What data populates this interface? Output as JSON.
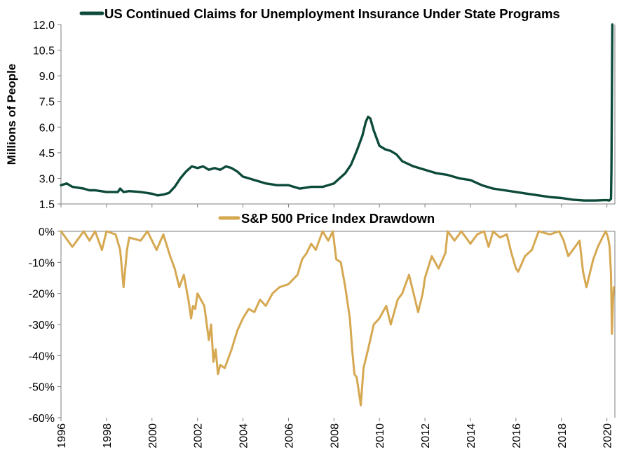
{
  "colors": {
    "claims": "#0c4a3a",
    "drawdown": "#d6a852",
    "axis": "#7f7f7f",
    "text": "#000000"
  },
  "chart_data": [
    {
      "type": "line",
      "legend": "US Continued Claims for Unemployment Insurance Under State Programs",
      "ylabel": "Millions of People",
      "ylim": [
        1.5,
        12.0
      ],
      "yticks": [
        "12.0",
        "10.5",
        "9.0",
        "7.5",
        "6.0",
        "4.5",
        "3.0",
        "1.5"
      ],
      "yticks_values": [
        12.0,
        10.5,
        9.0,
        7.5,
        6.0,
        4.5,
        3.0,
        1.5
      ],
      "xlim": [
        1996,
        2020.35
      ],
      "series": [
        {
          "x": [
            1996.0,
            1996.25,
            1996.5,
            1996.75,
            1997.0,
            1997.25,
            1997.5,
            1997.75,
            1998.0,
            1998.25,
            1998.5,
            1998.6,
            1998.75,
            1999.0,
            1999.5,
            2000.0,
            2000.25,
            2000.5,
            2000.75,
            2001.0,
            2001.25,
            2001.5,
            2001.75,
            2002.0,
            2002.25,
            2002.5,
            2002.75,
            2003.0,
            2003.25,
            2003.5,
            2003.75,
            2004.0,
            2004.25,
            2004.5,
            2004.75,
            2005.0,
            2005.5,
            2005.75,
            2006.0,
            2006.5,
            2007.0,
            2007.5,
            2007.75,
            2008.0,
            2008.25,
            2008.5,
            2008.75,
            2009.0,
            2009.25,
            2009.4,
            2009.5,
            2009.6,
            2009.75,
            2010.0,
            2010.25,
            2010.5,
            2010.75,
            2011.0,
            2011.5,
            2012.0,
            2012.5,
            2013.0,
            2013.5,
            2014.0,
            2014.5,
            2015.0,
            2015.5,
            2016.0,
            2016.5,
            2017.0,
            2017.5,
            2018.0,
            2018.5,
            2019.0,
            2019.5,
            2019.9,
            2020.0,
            2020.1,
            2020.18,
            2020.2,
            2020.24
          ],
          "y": [
            2.6,
            2.7,
            2.5,
            2.45,
            2.4,
            2.3,
            2.3,
            2.25,
            2.2,
            2.2,
            2.2,
            2.4,
            2.2,
            2.25,
            2.2,
            2.1,
            2.0,
            2.05,
            2.15,
            2.5,
            3.0,
            3.4,
            3.7,
            3.6,
            3.7,
            3.5,
            3.6,
            3.5,
            3.7,
            3.6,
            3.4,
            3.1,
            3.0,
            2.9,
            2.8,
            2.7,
            2.6,
            2.6,
            2.6,
            2.4,
            2.5,
            2.5,
            2.6,
            2.7,
            3.0,
            3.3,
            3.8,
            4.6,
            5.5,
            6.3,
            6.6,
            6.5,
            5.8,
            4.9,
            4.7,
            4.6,
            4.4,
            4.0,
            3.7,
            3.5,
            3.3,
            3.2,
            3.0,
            2.9,
            2.6,
            2.4,
            2.3,
            2.2,
            2.1,
            2.0,
            1.9,
            1.85,
            1.75,
            1.7,
            1.7,
            1.72,
            1.72,
            1.7,
            1.8,
            3.5,
            12.0
          ]
        }
      ]
    },
    {
      "type": "area",
      "legend": "S&P 500 Price Index Drawdown",
      "ylim": [
        -60,
        0
      ],
      "yticks": [
        "0%",
        "-10%",
        "-20%",
        "-30%",
        "-40%",
        "-50%",
        "-60%"
      ],
      "yticks_values": [
        0,
        -10,
        -20,
        -30,
        -40,
        -50,
        -60
      ],
      "xlim": [
        1996,
        2020.35
      ],
      "xticks": [
        "1996",
        "1998",
        "2000",
        "2002",
        "2004",
        "2006",
        "2008",
        "2010",
        "2012",
        "2014",
        "2016",
        "2018",
        "2020"
      ],
      "xticks_values": [
        1996,
        1998,
        2000,
        2002,
        2004,
        2006,
        2008,
        2010,
        2012,
        2014,
        2016,
        2018,
        2020
      ],
      "series": [
        {
          "x": [
            1996.0,
            1996.2,
            1996.5,
            1996.8,
            1997.0,
            1997.25,
            1997.5,
            1997.8,
            1998.0,
            1998.4,
            1998.6,
            1998.75,
            1998.9,
            1999.0,
            1999.5,
            1999.8,
            2000.0,
            2000.2,
            2000.5,
            2000.8,
            2001.0,
            2001.2,
            2001.4,
            2001.6,
            2001.72,
            2001.8,
            2001.9,
            2002.0,
            2002.3,
            2002.5,
            2002.6,
            2002.7,
            2002.8,
            2002.9,
            2003.0,
            2003.2,
            2003.5,
            2003.75,
            2004.0,
            2004.25,
            2004.5,
            2004.75,
            2005.0,
            2005.3,
            2005.6,
            2006.0,
            2006.4,
            2006.6,
            2006.8,
            2007.0,
            2007.2,
            2007.5,
            2007.75,
            2007.95,
            2008.1,
            2008.3,
            2008.5,
            2008.7,
            2008.8,
            2008.9,
            2009.0,
            2009.1,
            2009.18,
            2009.3,
            2009.5,
            2009.75,
            2010.0,
            2010.3,
            2010.5,
            2010.8,
            2011.0,
            2011.3,
            2011.5,
            2011.7,
            2011.9,
            2012.0,
            2012.3,
            2012.6,
            2012.9,
            2013.0,
            2013.3,
            2013.6,
            2014.0,
            2014.3,
            2014.6,
            2014.8,
            2015.0,
            2015.3,
            2015.6,
            2015.8,
            2016.0,
            2016.1,
            2016.4,
            2016.7,
            2017.0,
            2017.5,
            2017.9,
            2018.1,
            2018.3,
            2018.6,
            2018.8,
            2018.95,
            2019.1,
            2019.4,
            2019.6,
            2019.8,
            2019.95,
            2020.05,
            2020.12,
            2020.18,
            2020.22,
            2020.27,
            2020.3
          ],
          "y": [
            0,
            -2,
            -5,
            -2,
            0,
            -3,
            0,
            -6,
            0,
            -1,
            -6,
            -18,
            -6,
            -2,
            -3,
            0,
            -3,
            -6,
            -1,
            -8,
            -12,
            -18,
            -14,
            -22,
            -28,
            -24,
            -25,
            -20,
            -24,
            -35,
            -30,
            -42,
            -38,
            -46,
            -43,
            -44,
            -38,
            -32,
            -28,
            -25,
            -26,
            -22,
            -24,
            -20,
            -18,
            -17,
            -14,
            -9,
            -7,
            -4,
            -6,
            0,
            -3,
            0,
            -9,
            -10,
            -18,
            -28,
            -38,
            -46,
            -47,
            -52,
            -56,
            -44,
            -38,
            -30,
            -28,
            -24,
            -30,
            -22,
            -20,
            -14,
            -20,
            -26,
            -20,
            -15,
            -8,
            -12,
            -7,
            0,
            -3,
            0,
            -4,
            -1,
            0,
            -5,
            0,
            -2,
            -1,
            -7,
            -12,
            -13,
            -8,
            -6,
            0,
            -1,
            0,
            -3,
            -8,
            -5,
            -3,
            -13,
            -18,
            -9,
            -5,
            -2,
            0,
            -2,
            -5,
            -14,
            -33,
            -22,
            -18
          ]
        }
      ]
    }
  ]
}
